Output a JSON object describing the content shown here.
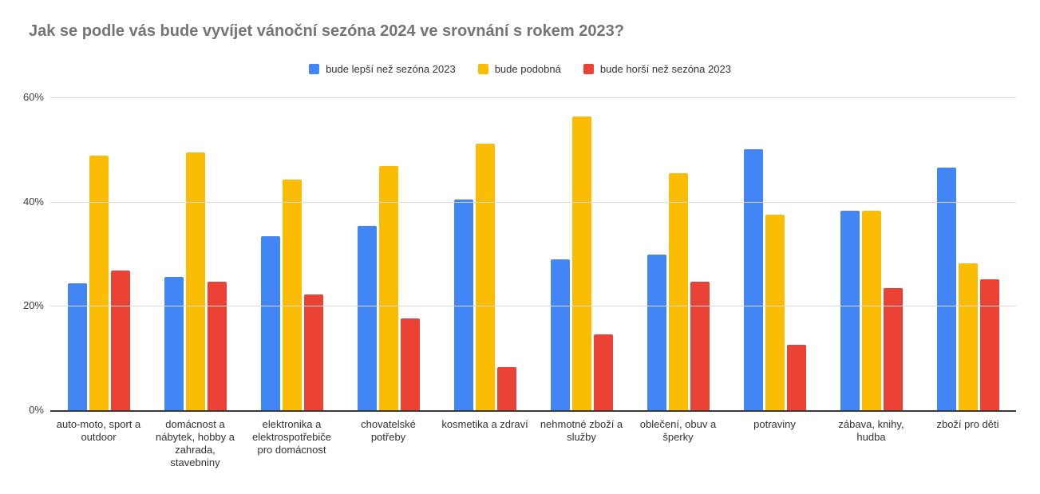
{
  "chart_data": {
    "type": "bar",
    "title": "Jak se podle vás bude vyvíjet vánoční sezóna 2024 ve srovnání s rokem 2023?",
    "title_color": "#757575",
    "categories": [
      "auto-moto, sport a outdoor",
      "domácnost a nábytek, hobby a zahrada, stavebniny",
      "elektronika a elektrospotřebiče pro domácnost",
      "chovatelské potřeby",
      "kosmetika a zdraví",
      "nehmotné zboží a služby",
      "oblečení, obuv a šperky",
      "potraviny",
      "zábava, knihy, hudba",
      "zboží pro děti"
    ],
    "series": [
      {
        "name": "bude lepší než sezóna 2023",
        "color": "#4285F4",
        "values": [
          24.4,
          25.6,
          33.3,
          35.3,
          40.4,
          29.0,
          29.8,
          50.0,
          38.2,
          46.6
        ]
      },
      {
        "name": "bude podobná",
        "color": "#FBBC04",
        "values": [
          48.8,
          49.4,
          44.3,
          46.8,
          51.1,
          56.4,
          45.5,
          37.5,
          38.2,
          28.1
        ]
      },
      {
        "name": "bude horší než sezóna 2023",
        "color": "#EA4335",
        "values": [
          26.8,
          24.7,
          22.2,
          17.6,
          8.3,
          14.5,
          24.6,
          12.5,
          23.5,
          25.1
        ]
      }
    ],
    "xlabel": "",
    "ylabel": "",
    "ylim": [
      0,
      60
    ],
    "yticks": [
      {
        "label": "0%",
        "value": 0
      },
      {
        "label": "20%",
        "value": 20
      },
      {
        "label": "40%",
        "value": 40
      },
      {
        "label": "60%",
        "value": 60
      }
    ],
    "grid": true,
    "legend_position": "top",
    "gridline_color": "#dadada",
    "baseline_color": "#3a3a3a",
    "background_color": "#ffffff"
  }
}
